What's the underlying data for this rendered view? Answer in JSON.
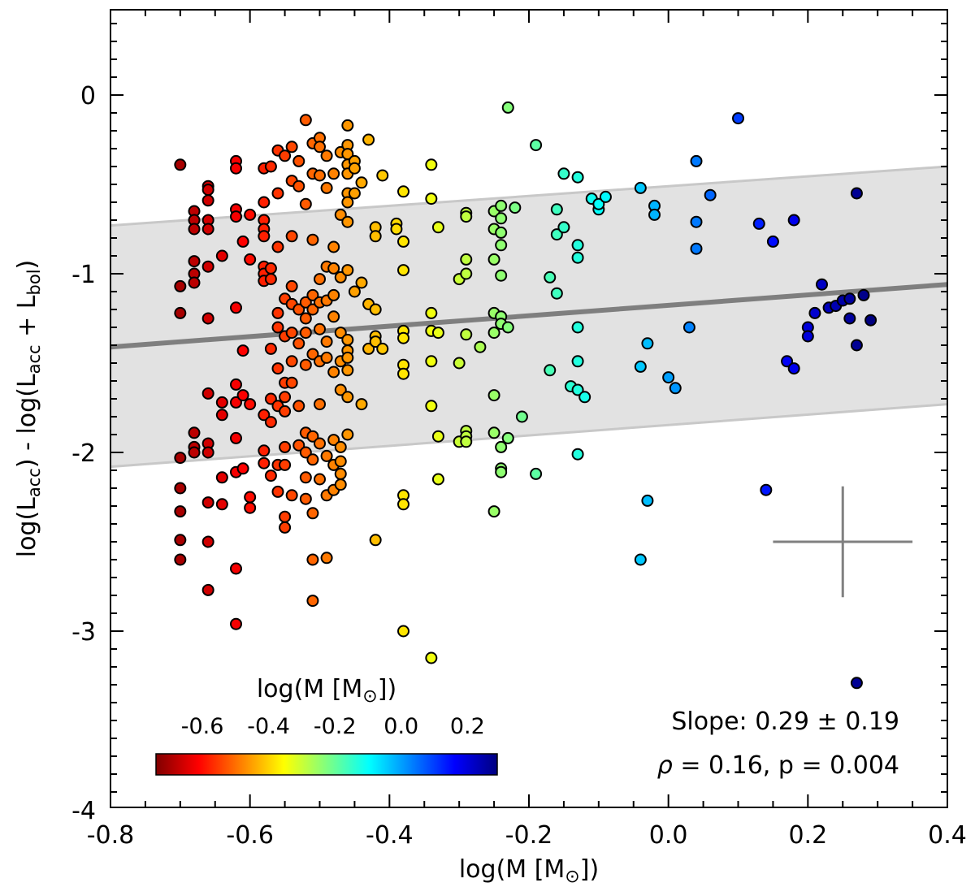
{
  "chart_data": {
    "type": "scatter",
    "xlabel": "log(M [M",
    "xlabel_sub": "⊙",
    "xlabel_end": "])",
    "ylabel_parts": [
      "log(L",
      "acc",
      ") - log(L",
      "acc",
      " + L",
      "bol",
      ")"
    ],
    "xlim": [
      -0.8,
      0.4
    ],
    "ylim": [
      -4,
      0.5
    ],
    "x_ticks": [
      -0.8,
      -0.6,
      -0.4,
      -0.2,
      0.0,
      0.2,
      0.4
    ],
    "x_tick_labels": [
      "-0.8",
      "-0.6",
      "-0.4",
      "-0.2",
      "0.0",
      "0.2",
      "0.4"
    ],
    "y_ticks": [
      0,
      -1,
      -2,
      -3,
      -4
    ],
    "y_tick_labels": [
      "0",
      "-1",
      "-2",
      "-3",
      "-4"
    ],
    "fit": {
      "x": [
        -0.8,
        0.4
      ],
      "y": [
        -1.41,
        -1.06
      ],
      "band_upper": [
        -0.73,
        -0.4
      ],
      "band_lower": [
        -2.08,
        -1.73
      ],
      "slope_text": "Slope: 0.29 ± 0.19",
      "corr_text_rho": "ρ",
      "corr_text_rest": " = 0.16, p = 0.004"
    },
    "error_bar": {
      "x": 0.25,
      "y": -2.5,
      "xerr": 0.1,
      "yerr": 0.31
    },
    "colorbar": {
      "title": "log(M [M",
      "title_sub": "⊙",
      "title_end": "])",
      "vmin": -0.74,
      "vmax": 0.29,
      "ticks": [
        -0.6,
        -0.4,
        -0.2,
        0.0,
        0.2
      ],
      "tick_labels": [
        "-0.6",
        "-0.4",
        "-0.2",
        "0.0",
        "0.2"
      ],
      "colors": [
        "#800000",
        "#ff0000",
        "#ff8000",
        "#ffff00",
        "#80ff80",
        "#00ffff",
        "#0080ff",
        "#0000ff",
        "#000080"
      ]
    },
    "points": [
      [
        -0.7,
        -0.39
      ],
      [
        -0.7,
        -1.07
      ],
      [
        -0.7,
        -1.22
      ],
      [
        -0.7,
        -2.03
      ],
      [
        -0.7,
        -2.2
      ],
      [
        -0.7,
        -2.33
      ],
      [
        -0.7,
        -2.49
      ],
      [
        -0.7,
        -2.6
      ],
      [
        -0.68,
        -0.65
      ],
      [
        -0.68,
        -0.7
      ],
      [
        -0.68,
        -0.75
      ],
      [
        -0.68,
        -0.93
      ],
      [
        -0.68,
        -1.0
      ],
      [
        -0.68,
        -1.05
      ],
      [
        -0.68,
        -1.89
      ],
      [
        -0.68,
        -1.97
      ],
      [
        -0.68,
        -2.0
      ],
      [
        -0.66,
        -0.51
      ],
      [
        -0.66,
        -0.53
      ],
      [
        -0.66,
        -0.59
      ],
      [
        -0.66,
        -0.7
      ],
      [
        -0.66,
        -0.75
      ],
      [
        -0.66,
        -0.96
      ],
      [
        -0.66,
        -1.25
      ],
      [
        -0.66,
        -1.67
      ],
      [
        -0.66,
        -1.95
      ],
      [
        -0.66,
        -2.0
      ],
      [
        -0.66,
        -2.28
      ],
      [
        -0.66,
        -2.5
      ],
      [
        -0.66,
        -2.77
      ],
      [
        -0.64,
        -0.9
      ],
      [
        -0.64,
        -1.72
      ],
      [
        -0.64,
        -1.79
      ],
      [
        -0.64,
        -2.14
      ],
      [
        -0.64,
        -2.29
      ],
      [
        -0.62,
        -0.37
      ],
      [
        -0.62,
        -0.41
      ],
      [
        -0.62,
        -0.64
      ],
      [
        -0.62,
        -0.68
      ],
      [
        -0.62,
        -1.19
      ],
      [
        -0.62,
        -1.62
      ],
      [
        -0.62,
        -1.72
      ],
      [
        -0.62,
        -1.92
      ],
      [
        -0.62,
        -2.11
      ],
      [
        -0.62,
        -2.65
      ],
      [
        -0.62,
        -2.96
      ],
      [
        -0.61,
        -0.82
      ],
      [
        -0.61,
        -1.43
      ],
      [
        -0.61,
        -1.68
      ],
      [
        -0.61,
        -2.09
      ],
      [
        -0.6,
        -0.67
      ],
      [
        -0.6,
        -0.92
      ],
      [
        -0.6,
        -1.73
      ],
      [
        -0.6,
        -2.25
      ],
      [
        -0.6,
        -2.31
      ],
      [
        -0.58,
        -0.41
      ],
      [
        -0.58,
        -0.6
      ],
      [
        -0.58,
        -0.7
      ],
      [
        -0.58,
        -0.75
      ],
      [
        -0.58,
        -0.79
      ],
      [
        -0.58,
        -0.96
      ],
      [
        -0.58,
        -1.0
      ],
      [
        -0.58,
        -1.04
      ],
      [
        -0.58,
        -1.79
      ],
      [
        -0.58,
        -1.99
      ],
      [
        -0.58,
        -2.06
      ],
      [
        -0.57,
        -0.4
      ],
      [
        -0.57,
        -0.97
      ],
      [
        -0.57,
        -1.03
      ],
      [
        -0.57,
        -1.42
      ],
      [
        -0.57,
        -1.7
      ],
      [
        -0.57,
        -1.83
      ],
      [
        -0.57,
        -2.13
      ],
      [
        -0.56,
        -0.31
      ],
      [
        -0.56,
        -0.55
      ],
      [
        -0.56,
        -0.85
      ],
      [
        -0.56,
        -1.22
      ],
      [
        -0.56,
        -1.3
      ],
      [
        -0.56,
        -1.53
      ],
      [
        -0.56,
        -1.74
      ],
      [
        -0.56,
        -2.07
      ],
      [
        -0.56,
        -2.22
      ],
      [
        -0.55,
        -0.34
      ],
      [
        -0.55,
        -1.14
      ],
      [
        -0.55,
        -1.35
      ],
      [
        -0.55,
        -1.61
      ],
      [
        -0.55,
        -1.69
      ],
      [
        -0.55,
        -1.77
      ],
      [
        -0.55,
        -1.97
      ],
      [
        -0.55,
        -2.07
      ],
      [
        -0.55,
        -2.36
      ],
      [
        -0.55,
        -2.42
      ],
      [
        -0.54,
        -0.29
      ],
      [
        -0.54,
        -0.48
      ],
      [
        -0.54,
        -0.79
      ],
      [
        -0.54,
        -1.07
      ],
      [
        -0.54,
        -1.17
      ],
      [
        -0.54,
        -1.33
      ],
      [
        -0.54,
        -1.49
      ],
      [
        -0.54,
        -1.61
      ],
      [
        -0.54,
        -2.24
      ],
      [
        -0.53,
        -0.37
      ],
      [
        -0.53,
        -0.51
      ],
      [
        -0.53,
        -1.2
      ],
      [
        -0.53,
        -1.39
      ],
      [
        -0.53,
        -1.74
      ],
      [
        -0.53,
        -1.96
      ],
      [
        -0.52,
        -0.14
      ],
      [
        -0.52,
        -0.61
      ],
      [
        -0.52,
        -1.16
      ],
      [
        -0.52,
        -1.25
      ],
      [
        -0.52,
        -1.33
      ],
      [
        -0.52,
        -1.51
      ],
      [
        -0.52,
        -1.89
      ],
      [
        -0.52,
        -2.0
      ],
      [
        -0.52,
        -2.14
      ],
      [
        -0.52,
        -2.26
      ],
      [
        -0.51,
        -0.27
      ],
      [
        -0.51,
        -0.44
      ],
      [
        -0.51,
        -0.81
      ],
      [
        -0.51,
        -1.12
      ],
      [
        -0.51,
        -1.2
      ],
      [
        -0.51,
        -1.45
      ],
      [
        -0.51,
        -1.91
      ],
      [
        -0.51,
        -2.04
      ],
      [
        -0.51,
        -2.34
      ],
      [
        -0.51,
        -2.6
      ],
      [
        -0.51,
        -2.83
      ],
      [
        -0.5,
        -0.24
      ],
      [
        -0.5,
        -0.29
      ],
      [
        -0.5,
        -0.45
      ],
      [
        -0.5,
        -1.03
      ],
      [
        -0.5,
        -1.16
      ],
      [
        -0.5,
        -1.31
      ],
      [
        -0.5,
        -1.49
      ],
      [
        -0.5,
        -1.73
      ],
      [
        -0.5,
        -1.95
      ],
      [
        -0.5,
        -2.15
      ],
      [
        -0.49,
        -0.34
      ],
      [
        -0.49,
        -0.52
      ],
      [
        -0.49,
        -0.96
      ],
      [
        -0.49,
        -1.15
      ],
      [
        -0.49,
        -1.38
      ],
      [
        -0.49,
        -1.47
      ],
      [
        -0.49,
        -2.02
      ],
      [
        -0.49,
        -2.24
      ],
      [
        -0.49,
        -2.59
      ],
      [
        -0.48,
        -0.44
      ],
      [
        -0.48,
        -0.85
      ],
      [
        -0.48,
        -0.97
      ],
      [
        -0.48,
        -1.12
      ],
      [
        -0.48,
        -1.24
      ],
      [
        -0.48,
        -1.55
      ],
      [
        -0.48,
        -1.93
      ],
      [
        -0.48,
        -2.07
      ],
      [
        -0.48,
        -2.21
      ],
      [
        -0.47,
        -0.32
      ],
      [
        -0.47,
        -0.67
      ],
      [
        -0.47,
        -1.02
      ],
      [
        -0.47,
        -1.33
      ],
      [
        -0.47,
        -1.49
      ],
      [
        -0.47,
        -1.65
      ],
      [
        -0.47,
        -1.97
      ],
      [
        -0.47,
        -2.05
      ],
      [
        -0.47,
        -2.12
      ],
      [
        -0.47,
        -2.18
      ],
      [
        -0.46,
        -0.17
      ],
      [
        -0.46,
        -0.28
      ],
      [
        -0.46,
        -0.33
      ],
      [
        -0.46,
        -0.39
      ],
      [
        -0.46,
        -0.44
      ],
      [
        -0.46,
        -0.55
      ],
      [
        -0.46,
        -0.6
      ],
      [
        -0.46,
        -0.71
      ],
      [
        -0.46,
        -0.98
      ],
      [
        -0.46,
        -1.37
      ],
      [
        -0.46,
        -1.43
      ],
      [
        -0.46,
        -1.47
      ],
      [
        -0.46,
        -1.54
      ],
      [
        -0.46,
        -1.69
      ],
      [
        -0.46,
        -1.9
      ],
      [
        -0.45,
        -0.37
      ],
      [
        -0.45,
        -0.41
      ],
      [
        -0.45,
        -0.55
      ],
      [
        -0.45,
        -1.1
      ],
      [
        -0.44,
        -0.49
      ],
      [
        -0.44,
        -1.05
      ],
      [
        -0.44,
        -1.73
      ],
      [
        -0.43,
        -0.25
      ],
      [
        -0.43,
        -1.17
      ],
      [
        -0.43,
        -1.42
      ],
      [
        -0.42,
        -0.74
      ],
      [
        -0.42,
        -0.79
      ],
      [
        -0.42,
        -1.2
      ],
      [
        -0.42,
        -1.35
      ],
      [
        -0.42,
        -1.38
      ],
      [
        -0.42,
        -2.49
      ],
      [
        -0.41,
        -0.45
      ],
      [
        -0.41,
        -1.42
      ],
      [
        -0.39,
        -0.72
      ],
      [
        -0.39,
        -0.75
      ],
      [
        -0.38,
        -0.54
      ],
      [
        -0.38,
        -0.82
      ],
      [
        -0.38,
        -0.98
      ],
      [
        -0.38,
        -1.32
      ],
      [
        -0.38,
        -1.36
      ],
      [
        -0.38,
        -1.51
      ],
      [
        -0.38,
        -1.56
      ],
      [
        -0.38,
        -2.24
      ],
      [
        -0.38,
        -2.29
      ],
      [
        -0.38,
        -3.0
      ],
      [
        -0.34,
        -0.39
      ],
      [
        -0.34,
        -0.58
      ],
      [
        -0.34,
        -1.22
      ],
      [
        -0.34,
        -1.32
      ],
      [
        -0.34,
        -1.49
      ],
      [
        -0.34,
        -1.74
      ],
      [
        -0.34,
        -3.15
      ],
      [
        -0.33,
        -0.74
      ],
      [
        -0.33,
        -1.33
      ],
      [
        -0.33,
        -1.91
      ],
      [
        -0.33,
        -2.15
      ],
      [
        -0.3,
        -1.03
      ],
      [
        -0.3,
        -1.5
      ],
      [
        -0.3,
        -1.94
      ],
      [
        -0.29,
        -0.66
      ],
      [
        -0.29,
        -0.68
      ],
      [
        -0.29,
        -0.92
      ],
      [
        -0.29,
        -1.0
      ],
      [
        -0.29,
        -1.34
      ],
      [
        -0.29,
        -1.88
      ],
      [
        -0.29,
        -1.91
      ],
      [
        -0.29,
        -1.94
      ],
      [
        -0.27,
        -1.41
      ],
      [
        -0.25,
        -0.65
      ],
      [
        -0.25,
        -0.75
      ],
      [
        -0.25,
        -0.92
      ],
      [
        -0.25,
        -1.22
      ],
      [
        -0.25,
        -1.33
      ],
      [
        -0.25,
        -1.68
      ],
      [
        -0.25,
        -1.89
      ],
      [
        -0.25,
        -2.33
      ],
      [
        -0.24,
        -0.62
      ],
      [
        -0.24,
        -0.69
      ],
      [
        -0.24,
        -0.77
      ],
      [
        -0.24,
        -0.84
      ],
      [
        -0.24,
        -1.01
      ],
      [
        -0.24,
        -1.24
      ],
      [
        -0.24,
        -1.28
      ],
      [
        -0.24,
        -1.97
      ],
      [
        -0.24,
        -2.09
      ],
      [
        -0.24,
        -2.11
      ],
      [
        -0.23,
        -0.07
      ],
      [
        -0.23,
        -1.3
      ],
      [
        -0.23,
        -1.92
      ],
      [
        -0.22,
        -0.63
      ],
      [
        -0.21,
        -1.8
      ],
      [
        -0.19,
        -0.28
      ],
      [
        -0.19,
        -2.12
      ],
      [
        -0.17,
        -1.02
      ],
      [
        -0.17,
        -1.54
      ],
      [
        -0.16,
        -0.64
      ],
      [
        -0.16,
        -0.78
      ],
      [
        -0.16,
        -1.11
      ],
      [
        -0.15,
        -0.44
      ],
      [
        -0.15,
        -0.74
      ],
      [
        -0.13,
        -0.46
      ],
      [
        -0.13,
        -0.84
      ],
      [
        -0.13,
        -0.91
      ],
      [
        -0.13,
        -1.3
      ],
      [
        -0.13,
        -1.49
      ],
      [
        -0.13,
        -2.01
      ],
      [
        -0.14,
        -1.63
      ],
      [
        -0.13,
        -1.65
      ],
      [
        -0.12,
        -1.69
      ],
      [
        -0.11,
        -0.58
      ],
      [
        -0.1,
        -0.64
      ],
      [
        -0.1,
        -0.61
      ],
      [
        -0.09,
        -0.57
      ],
      [
        -0.04,
        -0.52
      ],
      [
        -0.04,
        -1.52
      ],
      [
        -0.04,
        -2.6
      ],
      [
        -0.03,
        -2.27
      ],
      [
        -0.03,
        -1.39
      ],
      [
        -0.02,
        -0.62
      ],
      [
        -0.02,
        -0.67
      ],
      [
        0.0,
        -1.58
      ],
      [
        0.01,
        -1.64
      ],
      [
        0.03,
        -1.3
      ],
      [
        0.04,
        -0.37
      ],
      [
        0.04,
        -0.86
      ],
      [
        0.04,
        -0.71
      ],
      [
        0.06,
        -0.56
      ],
      [
        0.1,
        -0.13
      ],
      [
        0.13,
        -0.72
      ],
      [
        0.14,
        -2.21
      ],
      [
        0.15,
        -0.82
      ],
      [
        0.17,
        -1.49
      ],
      [
        0.18,
        -0.7
      ],
      [
        0.18,
        -1.53
      ],
      [
        0.2,
        -1.3
      ],
      [
        0.2,
        -1.35
      ],
      [
        0.21,
        -1.22
      ],
      [
        0.22,
        -1.06
      ],
      [
        0.23,
        -1.19
      ],
      [
        0.24,
        -1.18
      ],
      [
        0.25,
        -1.15
      ],
      [
        0.26,
        -1.14
      ],
      [
        0.26,
        -1.25
      ],
      [
        0.27,
        -0.55
      ],
      [
        0.27,
        -1.4
      ],
      [
        0.28,
        -1.12
      ],
      [
        0.29,
        -1.26
      ],
      [
        0.27,
        -3.29
      ]
    ]
  }
}
